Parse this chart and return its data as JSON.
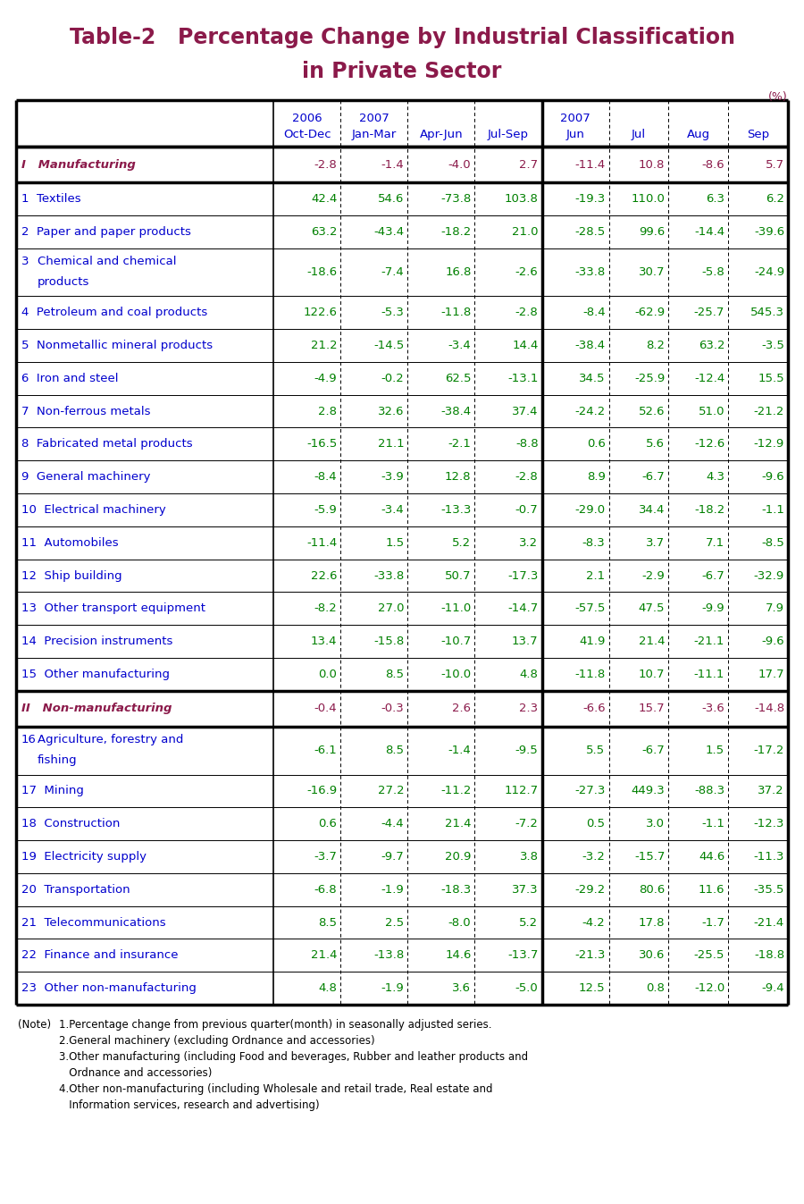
{
  "title_line1": "Table-2   Percentage Change by Industrial Classification",
  "title_line2": "in Private Sector",
  "title_color": "#8B1A4A",
  "percent_label": "(%)",
  "header_color": "#0000CD",
  "border_color": "#000000",
  "rows": [
    {
      "label": "I   Manufacturing",
      "num": "",
      "label2": "",
      "values": [
        "-2.8",
        "-1.4",
        "-4.0",
        "2.7",
        "-11.4",
        "10.8",
        "-8.6",
        "5.7"
      ],
      "style": "roman",
      "label_color": "#8B1A4A",
      "value_color": "#8B1A4A"
    },
    {
      "label": "1  Textiles",
      "num": "",
      "label2": "",
      "values": [
        "42.4",
        "54.6",
        "-73.8",
        "103.8",
        "-19.3",
        "110.0",
        "6.3",
        "6.2"
      ],
      "style": "normal",
      "label_color": "#0000CD",
      "value_color": "#008000"
    },
    {
      "label": "2  Paper and paper products",
      "num": "",
      "label2": "",
      "values": [
        "63.2",
        "-43.4",
        "-18.2",
        "21.0",
        "-28.5",
        "99.6",
        "-14.4",
        "-39.6"
      ],
      "style": "normal",
      "label_color": "#0000CD",
      "value_color": "#008000"
    },
    {
      "label": "Chemical and chemical",
      "num": "3",
      "label2": "products",
      "values": [
        "-18.6",
        "-7.4",
        "16.8",
        "-2.6",
        "-33.8",
        "30.7",
        "-5.8",
        "-24.9"
      ],
      "style": "two_line",
      "label_color": "#0000CD",
      "value_color": "#008000"
    },
    {
      "label": "4  Petroleum and coal products",
      "num": "",
      "label2": "",
      "values": [
        "122.6",
        "-5.3",
        "-11.8",
        "-2.8",
        "-8.4",
        "-62.9",
        "-25.7",
        "545.3"
      ],
      "style": "normal",
      "label_color": "#0000CD",
      "value_color": "#008000"
    },
    {
      "label": "5  Nonmetallic mineral products",
      "num": "",
      "label2": "",
      "values": [
        "21.2",
        "-14.5",
        "-3.4",
        "14.4",
        "-38.4",
        "8.2",
        "63.2",
        "-3.5"
      ],
      "style": "normal",
      "label_color": "#0000CD",
      "value_color": "#008000"
    },
    {
      "label": "6  Iron and steel",
      "num": "",
      "label2": "",
      "values": [
        "-4.9",
        "-0.2",
        "62.5",
        "-13.1",
        "34.5",
        "-25.9",
        "-12.4",
        "15.5"
      ],
      "style": "normal",
      "label_color": "#0000CD",
      "value_color": "#008000"
    },
    {
      "label": "7  Non-ferrous metals",
      "num": "",
      "label2": "",
      "values": [
        "2.8",
        "32.6",
        "-38.4",
        "37.4",
        "-24.2",
        "52.6",
        "51.0",
        "-21.2"
      ],
      "style": "normal",
      "label_color": "#0000CD",
      "value_color": "#008000"
    },
    {
      "label": "8  Fabricated metal products",
      "num": "",
      "label2": "",
      "values": [
        "-16.5",
        "21.1",
        "-2.1",
        "-8.8",
        "0.6",
        "5.6",
        "-12.6",
        "-12.9"
      ],
      "style": "normal",
      "label_color": "#0000CD",
      "value_color": "#008000"
    },
    {
      "label": "9  General machinery",
      "num": "",
      "label2": "",
      "values": [
        "-8.4",
        "-3.9",
        "12.8",
        "-2.8",
        "8.9",
        "-6.7",
        "4.3",
        "-9.6"
      ],
      "style": "normal",
      "label_color": "#0000CD",
      "value_color": "#008000"
    },
    {
      "label": "10  Electrical machinery",
      "num": "",
      "label2": "",
      "values": [
        "-5.9",
        "-3.4",
        "-13.3",
        "-0.7",
        "-29.0",
        "34.4",
        "-18.2",
        "-1.1"
      ],
      "style": "normal",
      "label_color": "#0000CD",
      "value_color": "#008000"
    },
    {
      "label": "11  Automobiles",
      "num": "",
      "label2": "",
      "values": [
        "-11.4",
        "1.5",
        "5.2",
        "3.2",
        "-8.3",
        "3.7",
        "7.1",
        "-8.5"
      ],
      "style": "normal",
      "label_color": "#0000CD",
      "value_color": "#008000"
    },
    {
      "label": "12  Ship building",
      "num": "",
      "label2": "",
      "values": [
        "22.6",
        "-33.8",
        "50.7",
        "-17.3",
        "2.1",
        "-2.9",
        "-6.7",
        "-32.9"
      ],
      "style": "normal",
      "label_color": "#0000CD",
      "value_color": "#008000"
    },
    {
      "label": "13  Other transport equipment",
      "num": "",
      "label2": "",
      "values": [
        "-8.2",
        "27.0",
        "-11.0",
        "-14.7",
        "-57.5",
        "47.5",
        "-9.9",
        "7.9"
      ],
      "style": "normal",
      "label_color": "#0000CD",
      "value_color": "#008000"
    },
    {
      "label": "14  Precision instruments",
      "num": "",
      "label2": "",
      "values": [
        "13.4",
        "-15.8",
        "-10.7",
        "13.7",
        "41.9",
        "21.4",
        "-21.1",
        "-9.6"
      ],
      "style": "normal",
      "label_color": "#0000CD",
      "value_color": "#008000"
    },
    {
      "label": "15  Other manufacturing",
      "num": "",
      "label2": "",
      "values": [
        "0.0",
        "8.5",
        "-10.0",
        "4.8",
        "-11.8",
        "10.7",
        "-11.1",
        "17.7"
      ],
      "style": "normal",
      "label_color": "#0000CD",
      "value_color": "#008000"
    },
    {
      "label": "II   Non-manufacturing",
      "num": "",
      "label2": "",
      "values": [
        "-0.4",
        "-0.3",
        "2.6",
        "2.3",
        "-6.6",
        "15.7",
        "-3.6",
        "-14.8"
      ],
      "style": "roman",
      "label_color": "#8B1A4A",
      "value_color": "#8B1A4A"
    },
    {
      "label": "Agriculture, forestry and",
      "num": "16",
      "label2": "fishing",
      "values": [
        "-6.1",
        "8.5",
        "-1.4",
        "-9.5",
        "5.5",
        "-6.7",
        "1.5",
        "-17.2"
      ],
      "style": "two_line",
      "label_color": "#0000CD",
      "value_color": "#008000"
    },
    {
      "label": "17  Mining",
      "num": "",
      "label2": "",
      "values": [
        "-16.9",
        "27.2",
        "-11.2",
        "112.7",
        "-27.3",
        "449.3",
        "-88.3",
        "37.2"
      ],
      "style": "normal",
      "label_color": "#0000CD",
      "value_color": "#008000"
    },
    {
      "label": "18  Construction",
      "num": "",
      "label2": "",
      "values": [
        "0.6",
        "-4.4",
        "21.4",
        "-7.2",
        "0.5",
        "3.0",
        "-1.1",
        "-12.3"
      ],
      "style": "normal",
      "label_color": "#0000CD",
      "value_color": "#008000"
    },
    {
      "label": "19  Electricity supply",
      "num": "",
      "label2": "",
      "values": [
        "-3.7",
        "-9.7",
        "20.9",
        "3.8",
        "-3.2",
        "-15.7",
        "44.6",
        "-11.3"
      ],
      "style": "normal",
      "label_color": "#0000CD",
      "value_color": "#008000"
    },
    {
      "label": "20  Transportation",
      "num": "",
      "label2": "",
      "values": [
        "-6.8",
        "-1.9",
        "-18.3",
        "37.3",
        "-29.2",
        "80.6",
        "11.6",
        "-35.5"
      ],
      "style": "normal",
      "label_color": "#0000CD",
      "value_color": "#008000"
    },
    {
      "label": "21  Telecommunications",
      "num": "",
      "label2": "",
      "values": [
        "8.5",
        "2.5",
        "-8.0",
        "5.2",
        "-4.2",
        "17.8",
        "-1.7",
        "-21.4"
      ],
      "style": "normal",
      "label_color": "#0000CD",
      "value_color": "#008000"
    },
    {
      "label": "22  Finance and insurance",
      "num": "",
      "label2": "",
      "values": [
        "21.4",
        "-13.8",
        "14.6",
        "-13.7",
        "-21.3",
        "30.6",
        "-25.5",
        "-18.8"
      ],
      "style": "normal",
      "label_color": "#0000CD",
      "value_color": "#008000"
    },
    {
      "label": "23  Other non-manufacturing",
      "num": "",
      "label2": "",
      "values": [
        "4.8",
        "-1.9",
        "3.6",
        "-5.0",
        "12.5",
        "0.8",
        "-12.0",
        "-9.4"
      ],
      "style": "normal",
      "label_color": "#0000CD",
      "value_color": "#008000"
    }
  ],
  "notes": [
    [
      "(Note)",
      "1.Percentage change from previous quarter(month) in seasonally adjusted series."
    ],
    [
      "",
      "2.General machinery (excluding Ordnance and accessories)"
    ],
    [
      "",
      "3.Other manufacturing (including Food and beverages, Rubber and leather products and"
    ],
    [
      "",
      "   Ordnance and accessories)"
    ],
    [
      "",
      "4.Other non-manufacturing (including Wholesale and retail trade, Real estate and"
    ],
    [
      "",
      "   Information services, research and advertising)"
    ]
  ]
}
